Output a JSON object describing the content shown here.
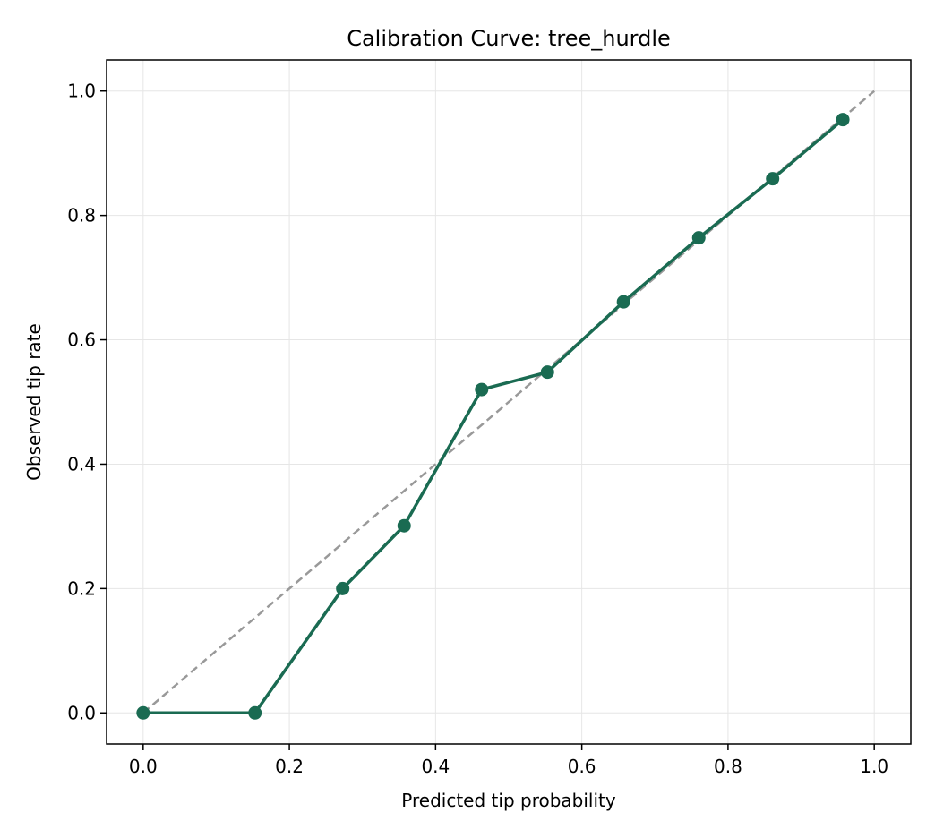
{
  "chart_data": {
    "type": "line",
    "title": "Calibration Curve: tree_hurdle",
    "xlabel": "Predicted tip probability",
    "ylabel": "Observed tip rate",
    "xlim": [
      -0.05,
      1.05
    ],
    "ylim": [
      -0.05,
      1.05
    ],
    "x_ticks": [
      0.0,
      0.2,
      0.4,
      0.6,
      0.8,
      1.0
    ],
    "y_ticks": [
      0.0,
      0.2,
      0.4,
      0.6,
      0.8,
      1.0
    ],
    "x_tick_labels": [
      "0.0",
      "0.2",
      "0.4",
      "0.6",
      "0.8",
      "1.0"
    ],
    "y_tick_labels": [
      "0.0",
      "0.2",
      "0.4",
      "0.6",
      "0.8",
      "1.0"
    ],
    "grid": true,
    "reference_line": {
      "style": "dashed",
      "color": "#999999",
      "x": [
        0.0,
        1.0
      ],
      "y": [
        0.0,
        1.0
      ]
    },
    "series": [
      {
        "color": "#1a6b52",
        "marker": "circle",
        "x": [
          0.0,
          0.153,
          0.273,
          0.357,
          0.463,
          0.553,
          0.657,
          0.76,
          0.861,
          0.957
        ],
        "y": [
          0.0,
          0.0,
          0.2,
          0.301,
          0.52,
          0.548,
          0.661,
          0.764,
          0.859,
          0.954
        ]
      }
    ]
  }
}
